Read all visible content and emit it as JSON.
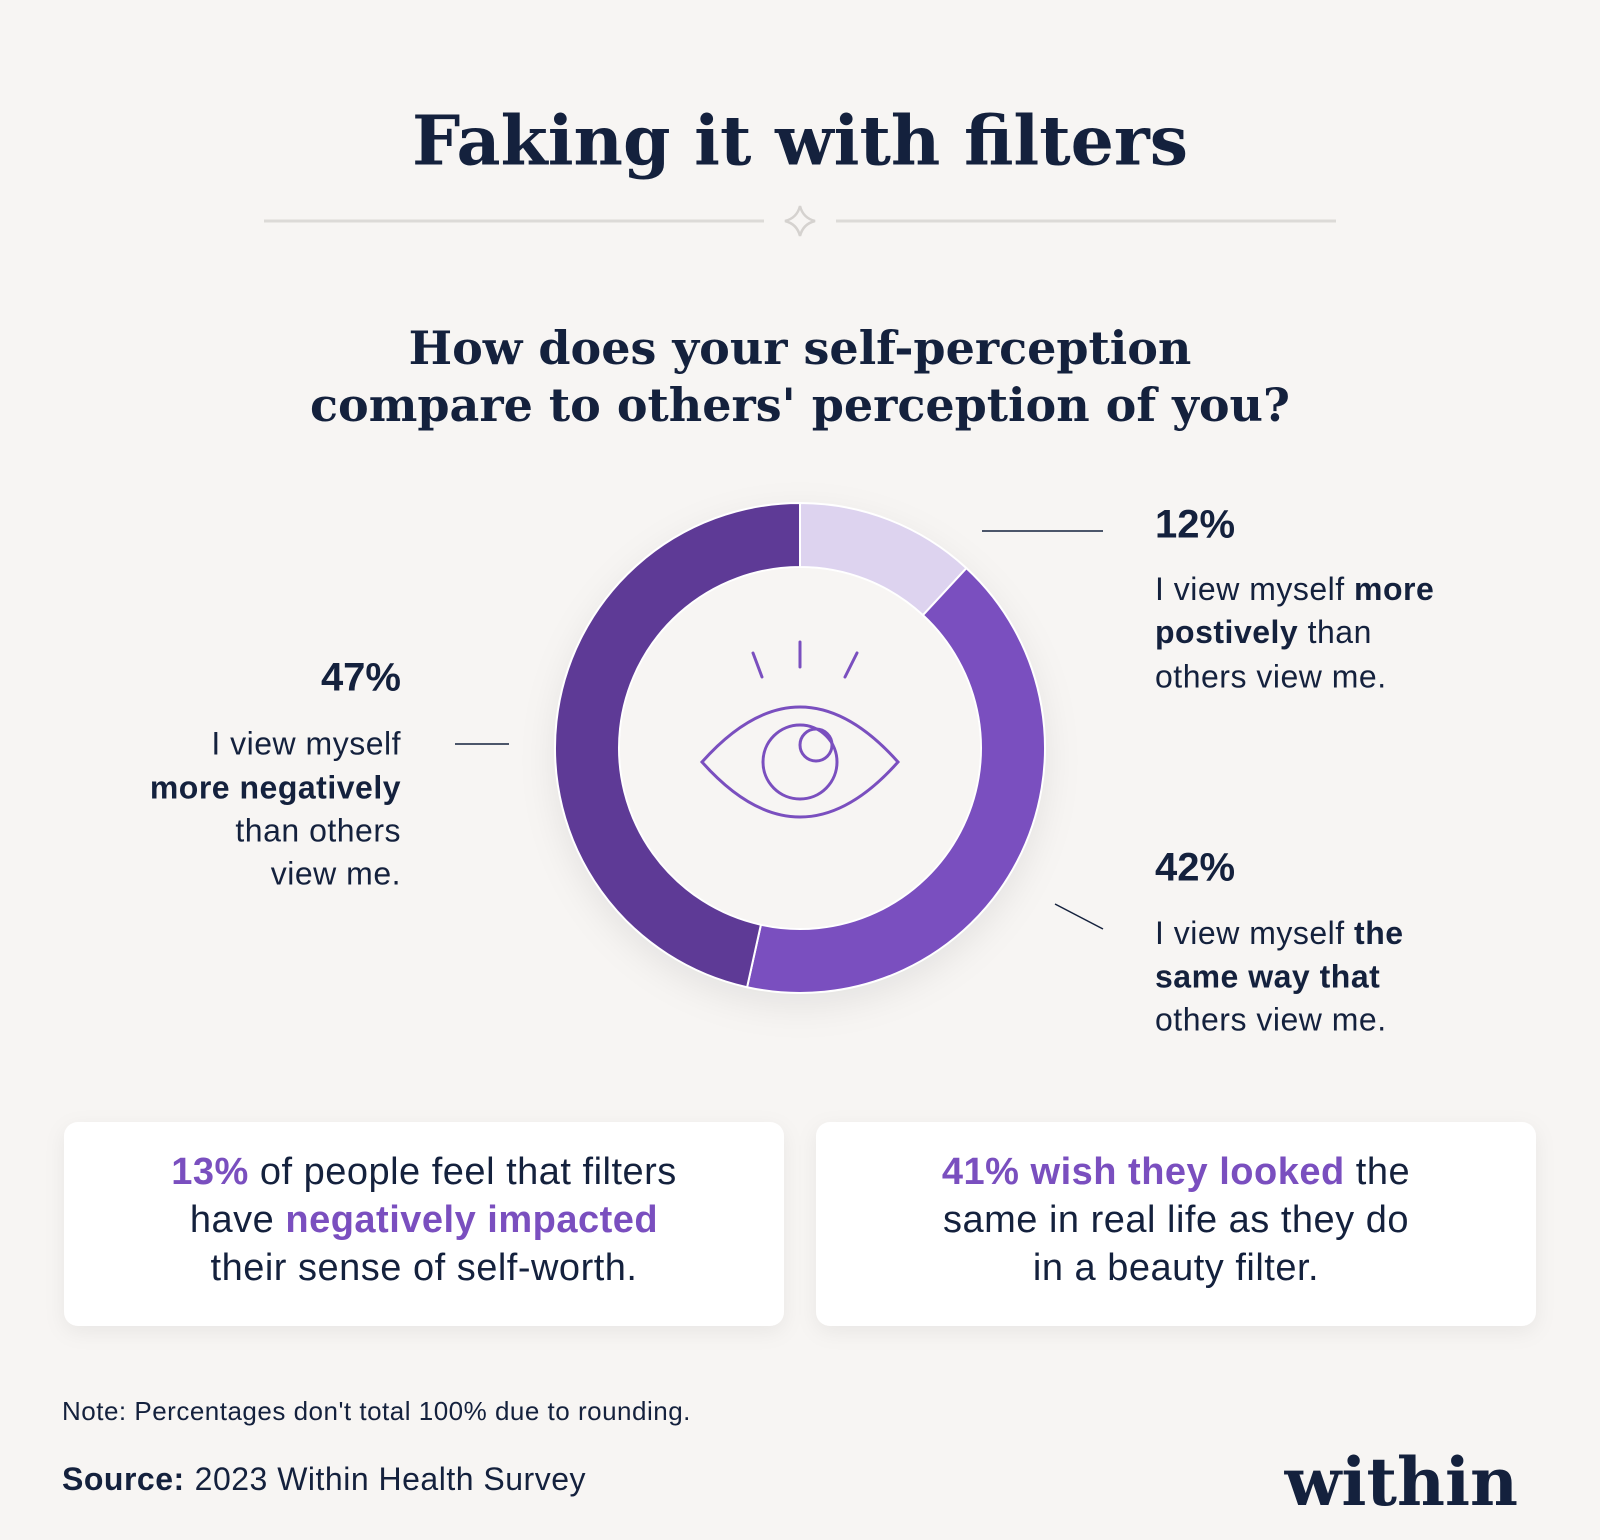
{
  "chart_data": {
    "type": "pie",
    "title": "Faking it with filters",
    "subtitle": [
      "How does your self-perception",
      "compare to others' perception of you?"
    ],
    "values": [
      12,
      42,
      47
    ],
    "value_labels": [
      "12%",
      "42%",
      "47%"
    ],
    "colors": [
      "#ddd3ef",
      "#7a4fbf",
      "#5e3a96"
    ],
    "labels": [
      [
        [
          "I view myself ",
          "more"
        ],
        [
          "postively",
          " than"
        ],
        [
          "others view me."
        ]
      ],
      [
        [
          "I view myself ",
          "the"
        ],
        [
          "same way that"
        ],
        [
          "others view me."
        ]
      ],
      [
        [
          "I view myself"
        ],
        [
          "more negatively"
        ],
        [
          "than others"
        ],
        [
          "view me."
        ]
      ]
    ]
  },
  "cards": [
    [
      [
        "13%",
        " of people feel that filters"
      ],
      [
        "have ",
        "negatively impacted"
      ],
      [
        "their sense of self-worth."
      ]
    ],
    [
      [
        "41% wish they looked",
        " the"
      ],
      [
        "same in real life as they do"
      ],
      [
        "in a beauty filter."
      ]
    ]
  ],
  "note": "Note: Percentages don't total 100% due to rounding.",
  "source": [
    "Source:",
    "2023 Within Health Survey"
  ],
  "logo": "within"
}
